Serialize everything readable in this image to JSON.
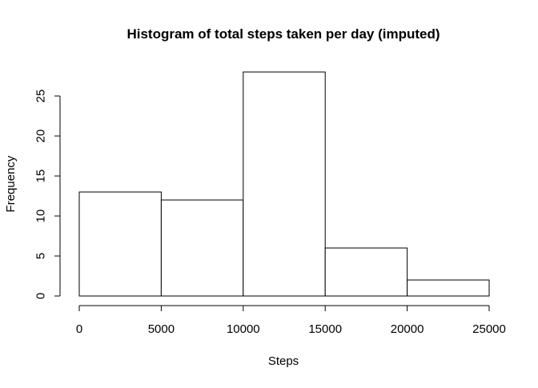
{
  "chart_data": {
    "type": "histogram",
    "title": "Histogram of total steps taken per day (imputed)",
    "xlabel": "Steps",
    "ylabel": "Frequency",
    "bins": [
      {
        "start": 0,
        "end": 5000,
        "count": 13
      },
      {
        "start": 5000,
        "end": 10000,
        "count": 12
      },
      {
        "start": 10000,
        "end": 15000,
        "count": 28
      },
      {
        "start": 15000,
        "end": 20000,
        "count": 6
      },
      {
        "start": 20000,
        "end": 25000,
        "count": 2
      }
    ],
    "x_ticks": [
      0,
      5000,
      10000,
      15000,
      20000,
      25000
    ],
    "y_ticks": [
      0,
      5,
      10,
      15,
      20,
      25
    ],
    "xlim": [
      0,
      25000
    ],
    "ylim": [
      0,
      28
    ],
    "grid": false,
    "bar_fill": "#ffffff",
    "bar_stroke": "#000000"
  }
}
